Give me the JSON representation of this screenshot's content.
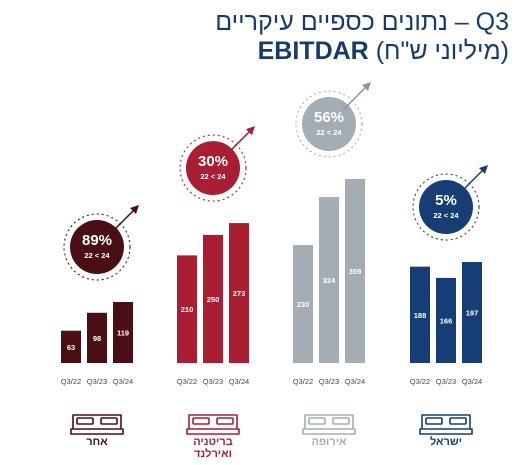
{
  "title": {
    "line1": "נתונים כספיים עיקריים – Q3",
    "line2_bold": "EBITDAR",
    "line2_rest": "(מיליוני ש\"ח)"
  },
  "chart_data": {
    "type": "bar",
    "categories": [
      "Q3/22",
      "Q3/23",
      "Q3/24"
    ],
    "series": [
      {
        "name": "אחר",
        "values": [
          63,
          98,
          119
        ],
        "color": "#4a0f14",
        "growth": "89%",
        "growth_sub": "22 < 24"
      },
      {
        "name": "בריטניה ואירלנד",
        "name_lines": [
          "בריטניה",
          "ואירלנד"
        ],
        "values": [
          210,
          250,
          273
        ],
        "color": "#a91e32",
        "growth": "30%",
        "growth_sub": "22 < 24"
      },
      {
        "name": "אירופה",
        "values": [
          230,
          324,
          359
        ],
        "color": "#a5adb4",
        "growth": "56%",
        "growth_sub": "22 < 24"
      },
      {
        "name": "ישראל",
        "values": [
          188,
          166,
          197
        ],
        "color": "#163e74",
        "growth": "5%",
        "growth_sub": "22 < 24"
      }
    ],
    "ylim": [
      0,
      359
    ],
    "grid": false,
    "legend": "bottom"
  }
}
